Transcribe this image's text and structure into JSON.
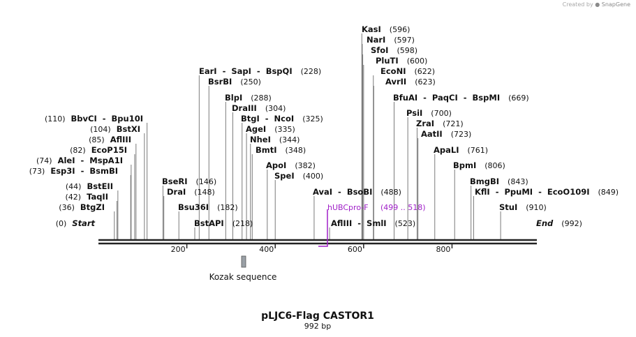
{
  "credit": {
    "prefix": "Created by",
    "brand": "SnapGene"
  },
  "map": {
    "name": "pLJC6-Flag CASTOR1",
    "length_label": "992 bp",
    "length": 992,
    "ticks": [
      "200",
      "400",
      "600",
      "800"
    ],
    "colors": {
      "line": "#222222",
      "tick_line": "#7a7a7a",
      "primer": "#a020c8",
      "feature_fill": "#9aa0a6"
    }
  },
  "sites": [
    {
      "name": "KasI",
      "pos": "(596)"
    },
    {
      "name": "NarI",
      "pos": "(597)"
    },
    {
      "name": "SfoI",
      "pos": "(598)"
    },
    {
      "name": "PluTI",
      "pos": "(600)"
    },
    {
      "name": "EcoNI",
      "pos": "(622)"
    },
    {
      "name": "AvrII",
      "pos": "(623)"
    },
    {
      "name": "BfuAI  -  PaqCI  -  BspMI",
      "pos": "(669)"
    },
    {
      "name": "PsiI",
      "pos": "(700)"
    },
    {
      "name": "ZraI",
      "pos": "(721)"
    },
    {
      "name": "AatII",
      "pos": "(723)"
    },
    {
      "name": "ApaLI",
      "pos": "(761)"
    },
    {
      "name": "BpmI",
      "pos": "(806)"
    },
    {
      "name": "BmgBI",
      "pos": "(843)"
    },
    {
      "name": "KflI  -  PpuMI  -  EcoO109I",
      "pos": "(849)"
    },
    {
      "name": "StuI",
      "pos": "(910)"
    },
    {
      "name": "End",
      "pos": "(992)"
    },
    {
      "name": "EarI  -  SapI  -  BspQI",
      "pos": "(228)"
    },
    {
      "name": "BsrBI",
      "pos": "(250)"
    },
    {
      "name": "BlpI",
      "pos": "(288)"
    },
    {
      "name": "DraIII",
      "pos": "(304)"
    },
    {
      "name": "BtgI  -  NcoI",
      "pos": "(325)"
    },
    {
      "name": "AgeI",
      "pos": "(335)"
    },
    {
      "name": "NheI",
      "pos": "(344)"
    },
    {
      "name": "BmtI",
      "pos": "(348)"
    },
    {
      "name": "ApoI",
      "pos": "(382)"
    },
    {
      "name": "SpeI",
      "pos": "(400)"
    },
    {
      "name": "AvaI  -  BsoBI",
      "pos": "(488)"
    },
    {
      "name": "AflIII  -  SmlI",
      "pos": "(523)"
    },
    {
      "name": "BseRI",
      "pos": "(146)"
    },
    {
      "name": "DraI",
      "pos": "(148)"
    },
    {
      "name": "Bsu36I",
      "pos": "(182)"
    },
    {
      "name": "BstAPI",
      "pos": "(218)"
    },
    {
      "name": "BbvCI  -  Bpu10I",
      "pos": "(110)"
    },
    {
      "name": "BstXI",
      "pos": "(104)"
    },
    {
      "name": "AflIII",
      "pos": "(85)"
    },
    {
      "name": "EcoP15I",
      "pos": "(82)"
    },
    {
      "name": "AleI  -  MspA1I",
      "pos": "(74)"
    },
    {
      "name": "Esp3I  -  BsmBI",
      "pos": "(73)"
    },
    {
      "name": "BstEII",
      "pos": "(44)"
    },
    {
      "name": "TaqII",
      "pos": "(42)"
    },
    {
      "name": "BtgZI",
      "pos": "(36)"
    },
    {
      "name": "Start",
      "pos": "(0)"
    }
  ],
  "primer": {
    "name": "hUBCpro-F",
    "range": "(499 .. 518)"
  },
  "feature": {
    "name": "Kozak sequence"
  }
}
